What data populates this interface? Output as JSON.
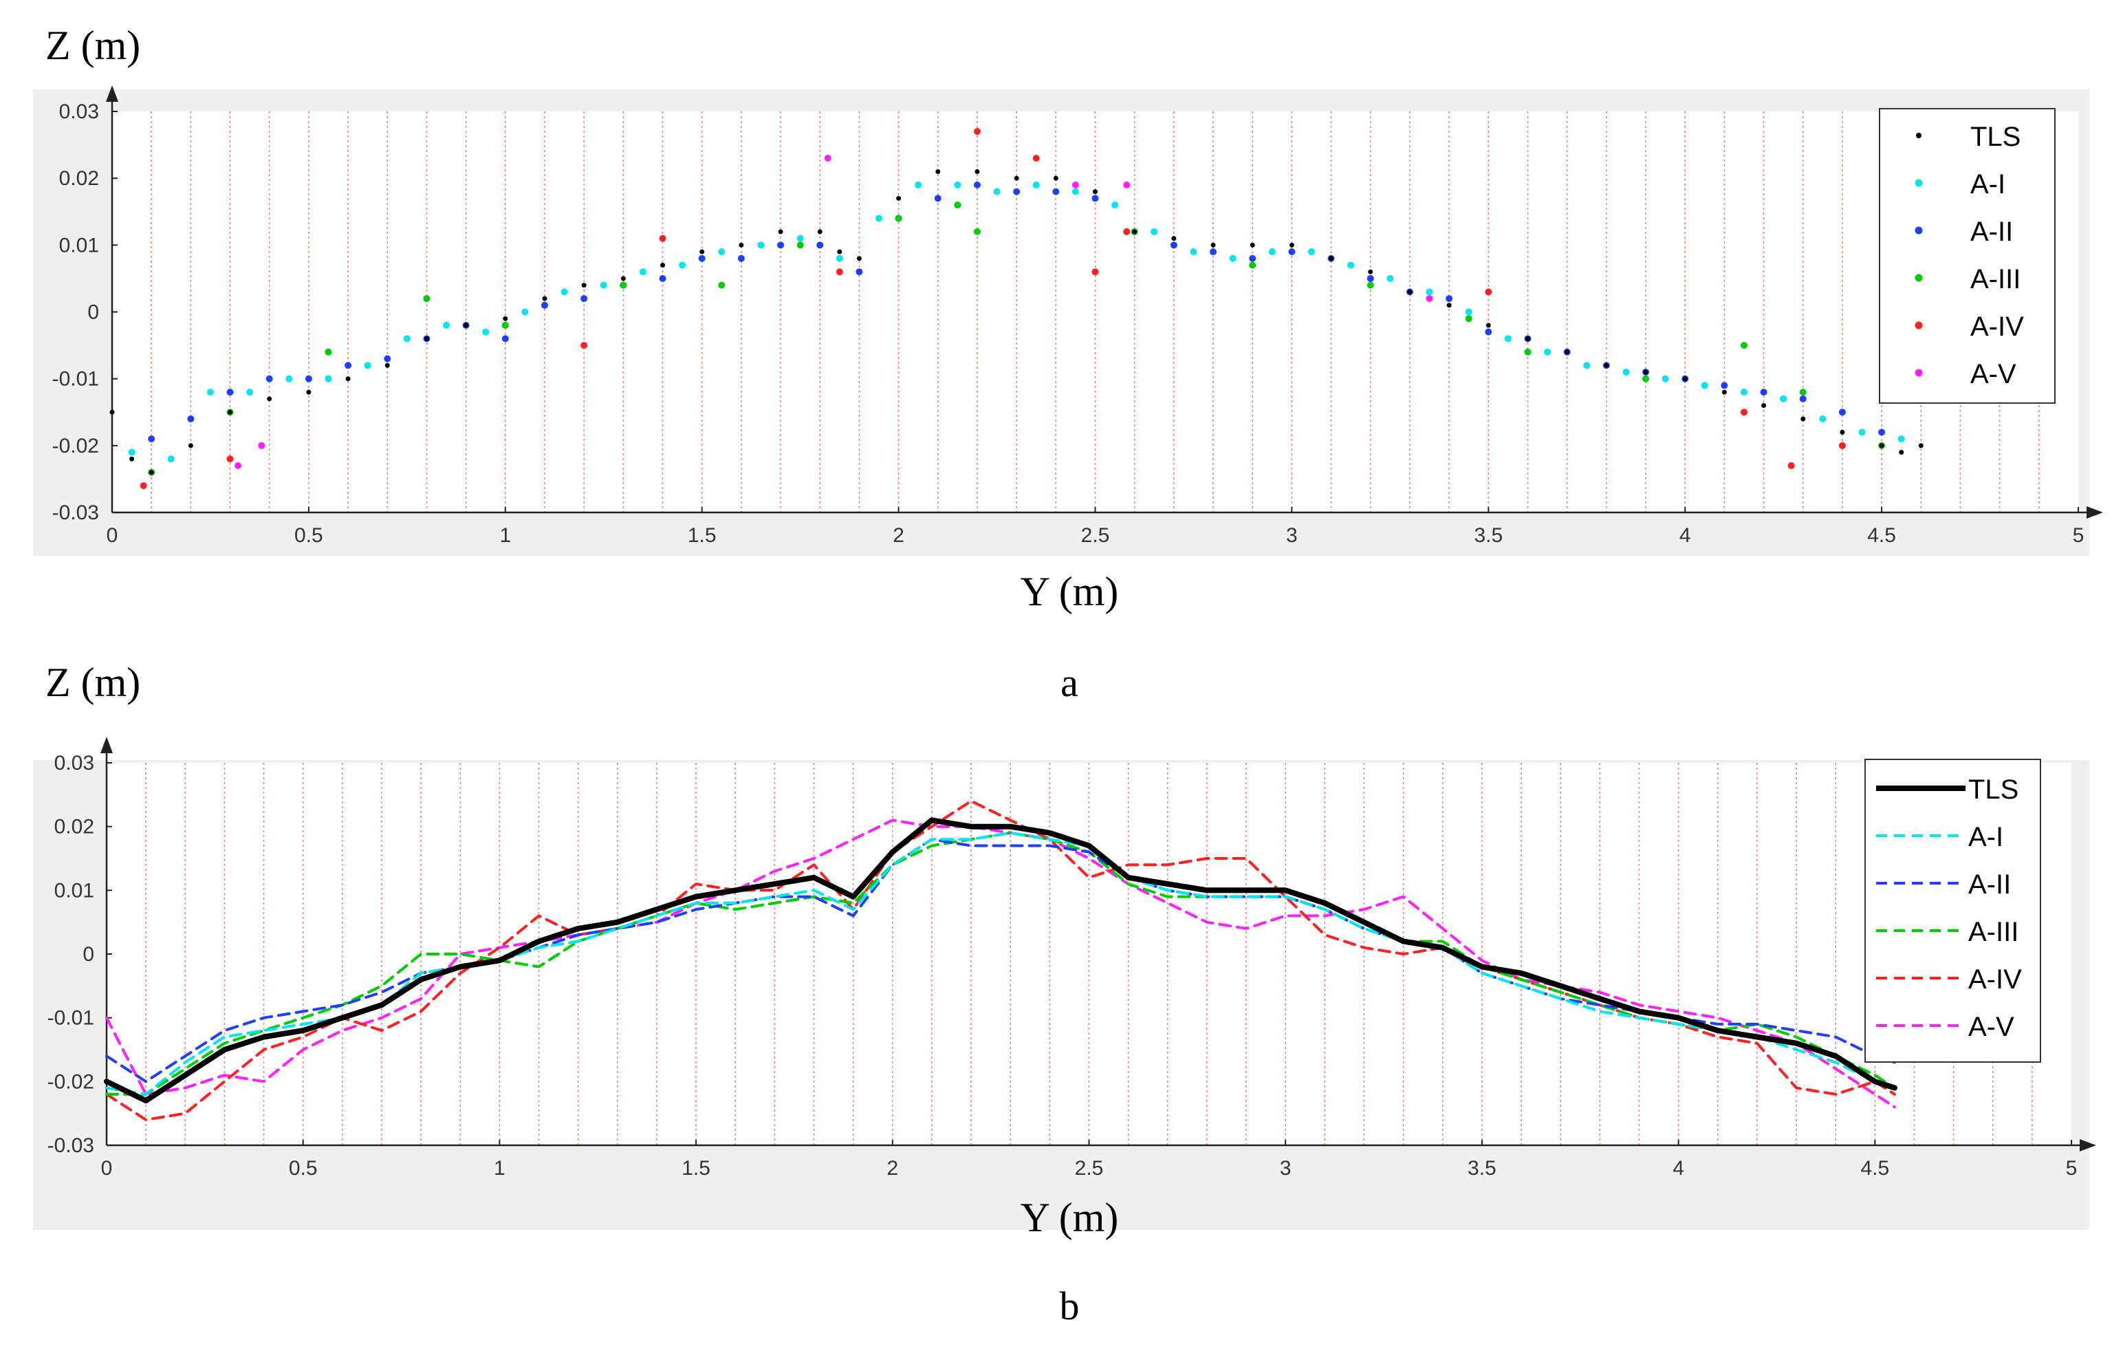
{
  "chart_data": [
    {
      "panel": "a",
      "type": "scatter",
      "xlabel": "Y (m)",
      "ylabel": "Z (m)",
      "caption": "a",
      "xlim": [
        0,
        5
      ],
      "ylim": [
        -0.03,
        0.03
      ],
      "xticks": [
        "0",
        "0.5",
        "1",
        "1.5",
        "2",
        "2.5",
        "3",
        "3.5",
        "4",
        "4.5",
        "5"
      ],
      "yticks": [
        "0.03",
        "0.02",
        "0.01",
        "0",
        "-0.01",
        "-0.02",
        "-0.03"
      ],
      "legend_position": "top-right",
      "series": [
        {
          "name": "TLS",
          "color": "#000000",
          "x": [
            0,
            0.05,
            0.1,
            0.2,
            0.3,
            0.4,
            0.5,
            0.6,
            0.7,
            0.8,
            0.9,
            1.0,
            1.1,
            1.2,
            1.3,
            1.4,
            1.5,
            1.6,
            1.7,
            1.8,
            1.85,
            1.9,
            2.0,
            2.1,
            2.2,
            2.3,
            2.4,
            2.5,
            2.6,
            2.7,
            2.8,
            2.9,
            3.0,
            3.1,
            3.2,
            3.3,
            3.4,
            3.5,
            3.6,
            3.7,
            3.8,
            3.9,
            4.0,
            4.1,
            4.2,
            4.3,
            4.4,
            4.5,
            4.55,
            4.6
          ],
          "values": [
            -0.015,
            -0.022,
            -0.024,
            -0.02,
            -0.015,
            -0.013,
            -0.012,
            -0.01,
            -0.008,
            -0.004,
            -0.002,
            -0.001,
            0.002,
            0.004,
            0.005,
            0.007,
            0.009,
            0.01,
            0.012,
            0.012,
            0.009,
            0.008,
            0.017,
            0.021,
            0.021,
            0.02,
            0.02,
            0.018,
            0.012,
            0.011,
            0.01,
            0.01,
            0.01,
            0.008,
            0.006,
            0.003,
            0.001,
            -0.002,
            -0.004,
            -0.006,
            -0.008,
            -0.009,
            -0.01,
            -0.012,
            -0.014,
            -0.016,
            -0.018,
            -0.02,
            -0.021,
            -0.02
          ]
        },
        {
          "name": "A-I",
          "color": "#00e5ee",
          "x": [
            0.05,
            0.15,
            0.25,
            0.35,
            0.45,
            0.55,
            0.65,
            0.75,
            0.85,
            0.95,
            1.05,
            1.15,
            1.25,
            1.35,
            1.45,
            1.55,
            1.65,
            1.75,
            1.85,
            1.95,
            2.05,
            2.15,
            2.25,
            2.35,
            2.45,
            2.55,
            2.65,
            2.75,
            2.85,
            2.95,
            3.05,
            3.15,
            3.25,
            3.35,
            3.45,
            3.55,
            3.65,
            3.75,
            3.85,
            3.95,
            4.05,
            4.15,
            4.25,
            4.35,
            4.45,
            4.55
          ],
          "values": [
            -0.021,
            -0.022,
            -0.012,
            -0.012,
            -0.01,
            -0.01,
            -0.008,
            -0.004,
            -0.002,
            -0.003,
            0.0,
            0.003,
            0.004,
            0.006,
            0.007,
            0.009,
            0.01,
            0.011,
            0.008,
            0.014,
            0.019,
            0.019,
            0.018,
            0.019,
            0.018,
            0.016,
            0.012,
            0.009,
            0.008,
            0.009,
            0.009,
            0.007,
            0.005,
            0.003,
            0.0,
            -0.004,
            -0.006,
            -0.008,
            -0.009,
            -0.01,
            -0.011,
            -0.012,
            -0.013,
            -0.016,
            -0.018,
            -0.019
          ]
        },
        {
          "name": "A-II",
          "color": "#1f3fff",
          "x": [
            0.1,
            0.2,
            0.3,
            0.4,
            0.5,
            0.6,
            0.7,
            0.8,
            0.9,
            1.0,
            1.1,
            1.2,
            1.3,
            1.4,
            1.5,
            1.6,
            1.7,
            1.8,
            1.9,
            2.0,
            2.1,
            2.2,
            2.3,
            2.4,
            2.5,
            2.6,
            2.7,
            2.8,
            2.9,
            3.0,
            3.1,
            3.2,
            3.3,
            3.4,
            3.5,
            3.6,
            3.7,
            3.8,
            3.9,
            4.0,
            4.1,
            4.2,
            4.3,
            4.4,
            4.5
          ],
          "values": [
            -0.019,
            -0.016,
            -0.012,
            -0.01,
            -0.01,
            -0.008,
            -0.007,
            -0.004,
            -0.002,
            -0.004,
            0.001,
            0.002,
            0.004,
            0.005,
            0.008,
            0.008,
            0.01,
            0.01,
            0.006,
            0.014,
            0.017,
            0.019,
            0.018,
            0.018,
            0.017,
            0.012,
            0.01,
            0.009,
            0.008,
            0.009,
            0.008,
            0.005,
            0.003,
            0.002,
            -0.003,
            -0.004,
            -0.006,
            -0.008,
            -0.009,
            -0.01,
            -0.011,
            -0.012,
            -0.013,
            -0.015,
            -0.018
          ]
        },
        {
          "name": "A-III",
          "color": "#00cc00",
          "x": [
            0.1,
            0.3,
            0.55,
            0.8,
            1.0,
            1.3,
            1.55,
            1.75,
            2.0,
            2.15,
            2.2,
            2.6,
            2.9,
            3.2,
            3.45,
            3.6,
            3.9,
            4.15,
            4.3,
            4.5
          ],
          "values": [
            -0.024,
            -0.015,
            -0.006,
            0.002,
            -0.002,
            0.004,
            0.004,
            0.01,
            0.014,
            0.016,
            0.012,
            0.012,
            0.007,
            0.004,
            -0.001,
            -0.006,
            -0.01,
            -0.005,
            -0.012,
            -0.02
          ]
        },
        {
          "name": "A-IV",
          "color": "#ff2020",
          "x": [
            0.08,
            0.3,
            1.2,
            1.4,
            1.85,
            2.2,
            2.35,
            2.5,
            2.58,
            3.5,
            4.15,
            4.27,
            4.4
          ],
          "values": [
            -0.026,
            -0.022,
            -0.005,
            0.011,
            0.006,
            0.027,
            0.023,
            0.006,
            0.012,
            0.003,
            -0.015,
            -0.023,
            -0.02
          ]
        },
        {
          "name": "A-V",
          "color": "#ff20ff",
          "x": [
            0.32,
            0.38,
            1.82,
            2.45,
            2.58,
            3.35
          ],
          "values": [
            -0.023,
            -0.02,
            0.023,
            0.019,
            0.019,
            0.002
          ]
        }
      ]
    },
    {
      "panel": "b",
      "type": "line",
      "xlabel": "Y (m)",
      "ylabel": "Z (m)",
      "caption": "b",
      "xlim": [
        0,
        5
      ],
      "ylim": [
        -0.03,
        0.03
      ],
      "xticks": [
        "0",
        "0.5",
        "1",
        "1.5",
        "2",
        "2.5",
        "3",
        "3.5",
        "4",
        "4.5",
        "5"
      ],
      "yticks": [
        "0.03",
        "0.02",
        "0.01",
        "0",
        "-0.01",
        "-0.02",
        "-0.03"
      ],
      "legend_position": "top-right",
      "x": [
        0,
        0.1,
        0.2,
        0.3,
        0.4,
        0.5,
        0.6,
        0.7,
        0.8,
        0.9,
        1.0,
        1.1,
        1.2,
        1.3,
        1.4,
        1.5,
        1.6,
        1.7,
        1.8,
        1.9,
        2.0,
        2.1,
        2.2,
        2.3,
        2.4,
        2.5,
        2.6,
        2.7,
        2.8,
        2.9,
        3.0,
        3.1,
        3.2,
        3.3,
        3.4,
        3.5,
        3.6,
        3.7,
        3.8,
        3.9,
        4.0,
        4.1,
        4.2,
        4.3,
        4.4,
        4.5,
        4.55
      ],
      "series": [
        {
          "name": "TLS",
          "color": "#000000",
          "style": "solid",
          "values": [
            -0.02,
            -0.023,
            -0.019,
            -0.015,
            -0.013,
            -0.012,
            -0.01,
            -0.008,
            -0.004,
            -0.002,
            -0.001,
            0.002,
            0.004,
            0.005,
            0.007,
            0.009,
            0.01,
            0.011,
            0.012,
            0.009,
            0.016,
            0.021,
            0.02,
            0.02,
            0.019,
            0.017,
            0.012,
            0.011,
            0.01,
            0.01,
            0.01,
            0.008,
            0.005,
            0.002,
            0.001,
            -0.002,
            -0.003,
            -0.005,
            -0.007,
            -0.009,
            -0.01,
            -0.012,
            -0.013,
            -0.014,
            -0.016,
            -0.02,
            -0.021
          ]
        },
        {
          "name": "A-I",
          "color": "#00e5ee",
          "style": "dashed",
          "values": [
            -0.021,
            -0.022,
            -0.017,
            -0.013,
            -0.012,
            -0.011,
            -0.01,
            -0.008,
            -0.003,
            -0.002,
            -0.001,
            0.001,
            0.002,
            0.004,
            0.006,
            0.008,
            0.008,
            0.009,
            0.01,
            0.007,
            0.014,
            0.018,
            0.018,
            0.019,
            0.018,
            0.017,
            0.012,
            0.01,
            0.009,
            0.009,
            0.009,
            0.007,
            0.004,
            0.002,
            0.001,
            -0.003,
            -0.005,
            -0.007,
            -0.009,
            -0.01,
            -0.011,
            -0.012,
            -0.013,
            -0.015,
            -0.017,
            -0.02,
            -0.021
          ]
        },
        {
          "name": "A-II",
          "color": "#1f3fff",
          "style": "dashed",
          "values": [
            -0.016,
            -0.02,
            -0.016,
            -0.012,
            -0.01,
            -0.009,
            -0.008,
            -0.006,
            -0.003,
            -0.002,
            -0.001,
            0.001,
            0.003,
            0.004,
            0.005,
            0.007,
            0.008,
            0.009,
            0.009,
            0.006,
            0.014,
            0.018,
            0.017,
            0.017,
            0.017,
            0.016,
            0.012,
            0.01,
            0.009,
            0.009,
            0.009,
            0.007,
            0.004,
            0.002,
            0.001,
            -0.003,
            -0.005,
            -0.007,
            -0.008,
            -0.009,
            -0.01,
            -0.011,
            -0.011,
            -0.012,
            -0.013,
            -0.016,
            -0.017
          ]
        },
        {
          "name": "A-III",
          "color": "#00cc00",
          "style": "dashed",
          "values": [
            -0.022,
            -0.022,
            -0.018,
            -0.014,
            -0.012,
            -0.01,
            -0.008,
            -0.005,
            0.0,
            0.0,
            -0.001,
            -0.002,
            0.002,
            0.004,
            0.006,
            0.008,
            0.007,
            0.008,
            0.009,
            0.008,
            0.014,
            0.017,
            0.018,
            0.019,
            0.018,
            0.016,
            0.011,
            0.009,
            0.009,
            0.009,
            0.009,
            0.007,
            0.004,
            0.002,
            0.002,
            -0.002,
            -0.004,
            -0.006,
            -0.008,
            -0.01,
            -0.011,
            -0.012,
            -0.011,
            -0.013,
            -0.016,
            -0.019,
            -0.021
          ]
        },
        {
          "name": "A-IV",
          "color": "#ff2020",
          "style": "dashed",
          "values": [
            -0.022,
            -0.026,
            -0.025,
            -0.02,
            -0.015,
            -0.013,
            -0.01,
            -0.012,
            -0.009,
            -0.003,
            0.001,
            0.006,
            0.003,
            0.004,
            0.006,
            0.011,
            0.01,
            0.01,
            0.014,
            0.007,
            0.016,
            0.02,
            0.024,
            0.021,
            0.018,
            0.012,
            0.014,
            0.014,
            0.015,
            0.015,
            0.009,
            0.003,
            0.001,
            0.0,
            0.001,
            -0.002,
            -0.004,
            -0.006,
            -0.008,
            -0.01,
            -0.011,
            -0.013,
            -0.014,
            -0.021,
            -0.022,
            -0.02,
            -0.022
          ]
        },
        {
          "name": "A-V",
          "color": "#ff20ff",
          "style": "dashed",
          "values": [
            -0.01,
            -0.022,
            -0.021,
            -0.019,
            -0.02,
            -0.015,
            -0.012,
            -0.01,
            -0.007,
            0.0,
            0.001,
            0.002,
            0.003,
            0.004,
            0.005,
            0.008,
            0.01,
            0.013,
            0.015,
            0.018,
            0.021,
            0.02,
            0.02,
            0.019,
            0.018,
            0.015,
            0.011,
            0.008,
            0.005,
            0.004,
            0.006,
            0.006,
            0.007,
            0.009,
            0.004,
            -0.001,
            -0.004,
            -0.005,
            -0.006,
            -0.008,
            -0.009,
            -0.01,
            -0.012,
            -0.014,
            -0.018,
            -0.022,
            -0.024
          ]
        }
      ]
    }
  ]
}
